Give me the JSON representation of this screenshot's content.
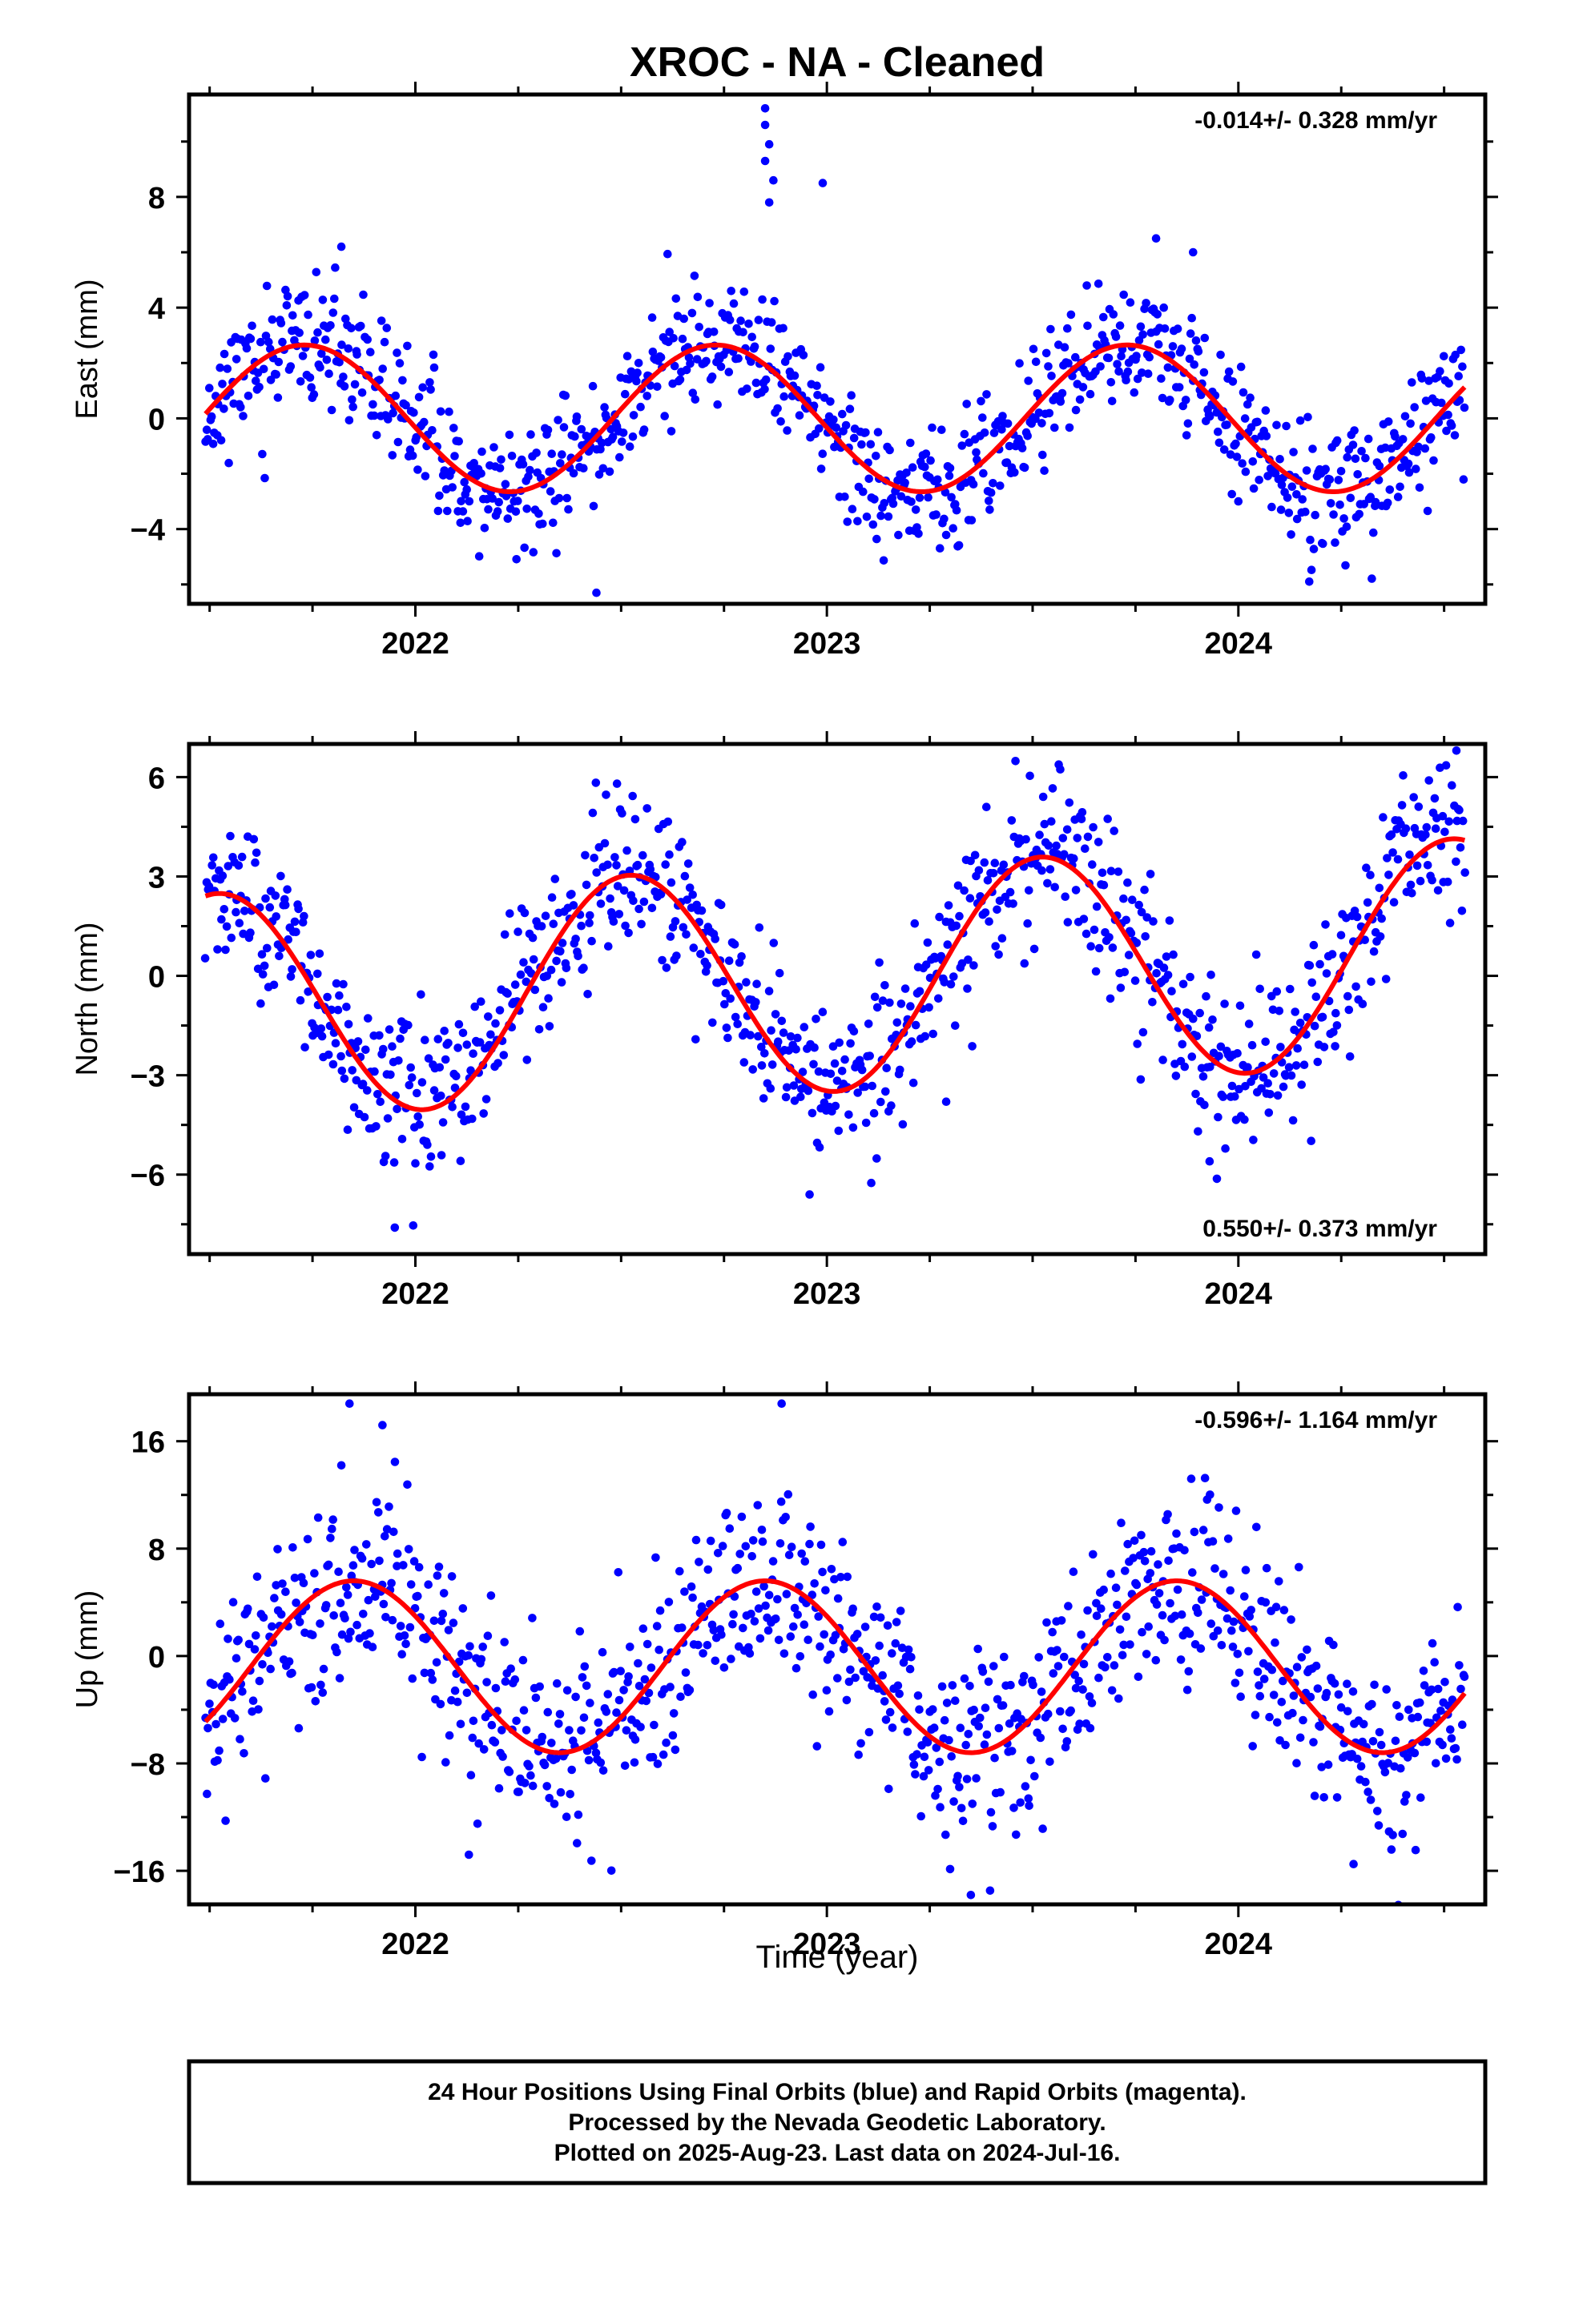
{
  "title": "XROC  - NA - Cleaned",
  "x_axis_label": "Time (year)",
  "footer": {
    "line1": "24 Hour Positions Using Final Orbits (blue) and Rapid Orbits (magenta).",
    "line2": "Processed by the Nevada Geodetic Laboratory.",
    "line3": "Plotted on 2025-Aug-23. Last data on 2024-Jul-16."
  },
  "colors": {
    "final_orbits": "#0000ff",
    "fit_curve": "#ff0000",
    "frame": "#000000"
  },
  "chart_data": [
    {
      "type": "scatter",
      "panel": "east",
      "ylabel": "East (mm)",
      "rate_text": "-0.014+/- 0.328 mm/yr",
      "rate_placement": "top-right",
      "xlim": [
        2021.45,
        2024.6
      ],
      "ylim": [
        -6.7,
        11.7
      ],
      "x_ticks": [
        2022,
        2023,
        2024
      ],
      "y_ticks": [
        -4,
        0,
        4,
        8
      ],
      "fit": {
        "name": "seasonal fit",
        "mean": 0.0,
        "amplitude": 2.65,
        "phase_peak": 2021.73,
        "x_start": 2021.49,
        "x_end": 2024.55
      },
      "outliers": [
        {
          "x": 2022.85,
          "y": 11.2
        },
        {
          "x": 2022.85,
          "y": 10.6
        },
        {
          "x": 2022.86,
          "y": 9.9
        },
        {
          "x": 2022.85,
          "y": 9.3
        },
        {
          "x": 2022.87,
          "y": 8.6
        },
        {
          "x": 2022.86,
          "y": 7.8
        },
        {
          "x": 2022.99,
          "y": 8.5
        },
        {
          "x": 2021.82,
          "y": 6.2
        },
        {
          "x": 2023.8,
          "y": 6.5
        },
        {
          "x": 2023.89,
          "y": 6.0
        },
        {
          "x": 2022.44,
          "y": -6.3
        }
      ]
    },
    {
      "type": "scatter",
      "panel": "north",
      "ylabel": "North (mm)",
      "rate_text": "0.550+/- 0.373 mm/yr",
      "rate_placement": "bottom-right",
      "xlim": [
        2021.45,
        2024.6
      ],
      "ylim": [
        -8.4,
        7.0
      ],
      "x_ticks": [
        2022,
        2023,
        2024
      ],
      "y_ticks": [
        -6,
        -3,
        0,
        3,
        6
      ],
      "fit": {
        "name": "seasonal fit",
        "mean": -0.1,
        "trend_per_year": 0.55,
        "amplitude": 3.4,
        "phase_peak": 2021.52,
        "x_start": 2021.49,
        "x_end": 2024.55
      },
      "outliers": [
        {
          "x": 2021.95,
          "y": -7.6
        },
        {
          "x": 2023.93,
          "y": -5.6
        },
        {
          "x": 2024.53,
          "y": 6.8
        },
        {
          "x": 2022.49,
          "y": 5.8
        },
        {
          "x": 2023.29,
          "y": -3.8
        }
      ]
    },
    {
      "type": "scatter",
      "panel": "up",
      "ylabel": "Up (mm)",
      "rate_text": "-0.596+/- 1.164 mm/yr",
      "rate_placement": "top-right",
      "xlim": [
        2021.45,
        2024.6
      ],
      "ylim": [
        -18.5,
        19.5
      ],
      "x_ticks": [
        2022,
        2023,
        2024
      ],
      "y_ticks": [
        -16,
        -8,
        0,
        8,
        16
      ],
      "fit": {
        "name": "seasonal fit",
        "mean": -0.8,
        "amplitude": 6.4,
        "phase_peak": 2021.85,
        "x_start": 2021.49,
        "x_end": 2024.55
      },
      "outliers": [
        {
          "x": 2021.84,
          "y": 18.8
        },
        {
          "x": 2022.89,
          "y": 18.8
        },
        {
          "x": 2023.35,
          "y": -17.8
        },
        {
          "x": 2021.92,
          "y": 17.2
        },
        {
          "x": 2022.13,
          "y": -14.8
        },
        {
          "x": 2024.28,
          "y": -15.5
        },
        {
          "x": 2021.82,
          "y": 14.2
        }
      ]
    }
  ]
}
